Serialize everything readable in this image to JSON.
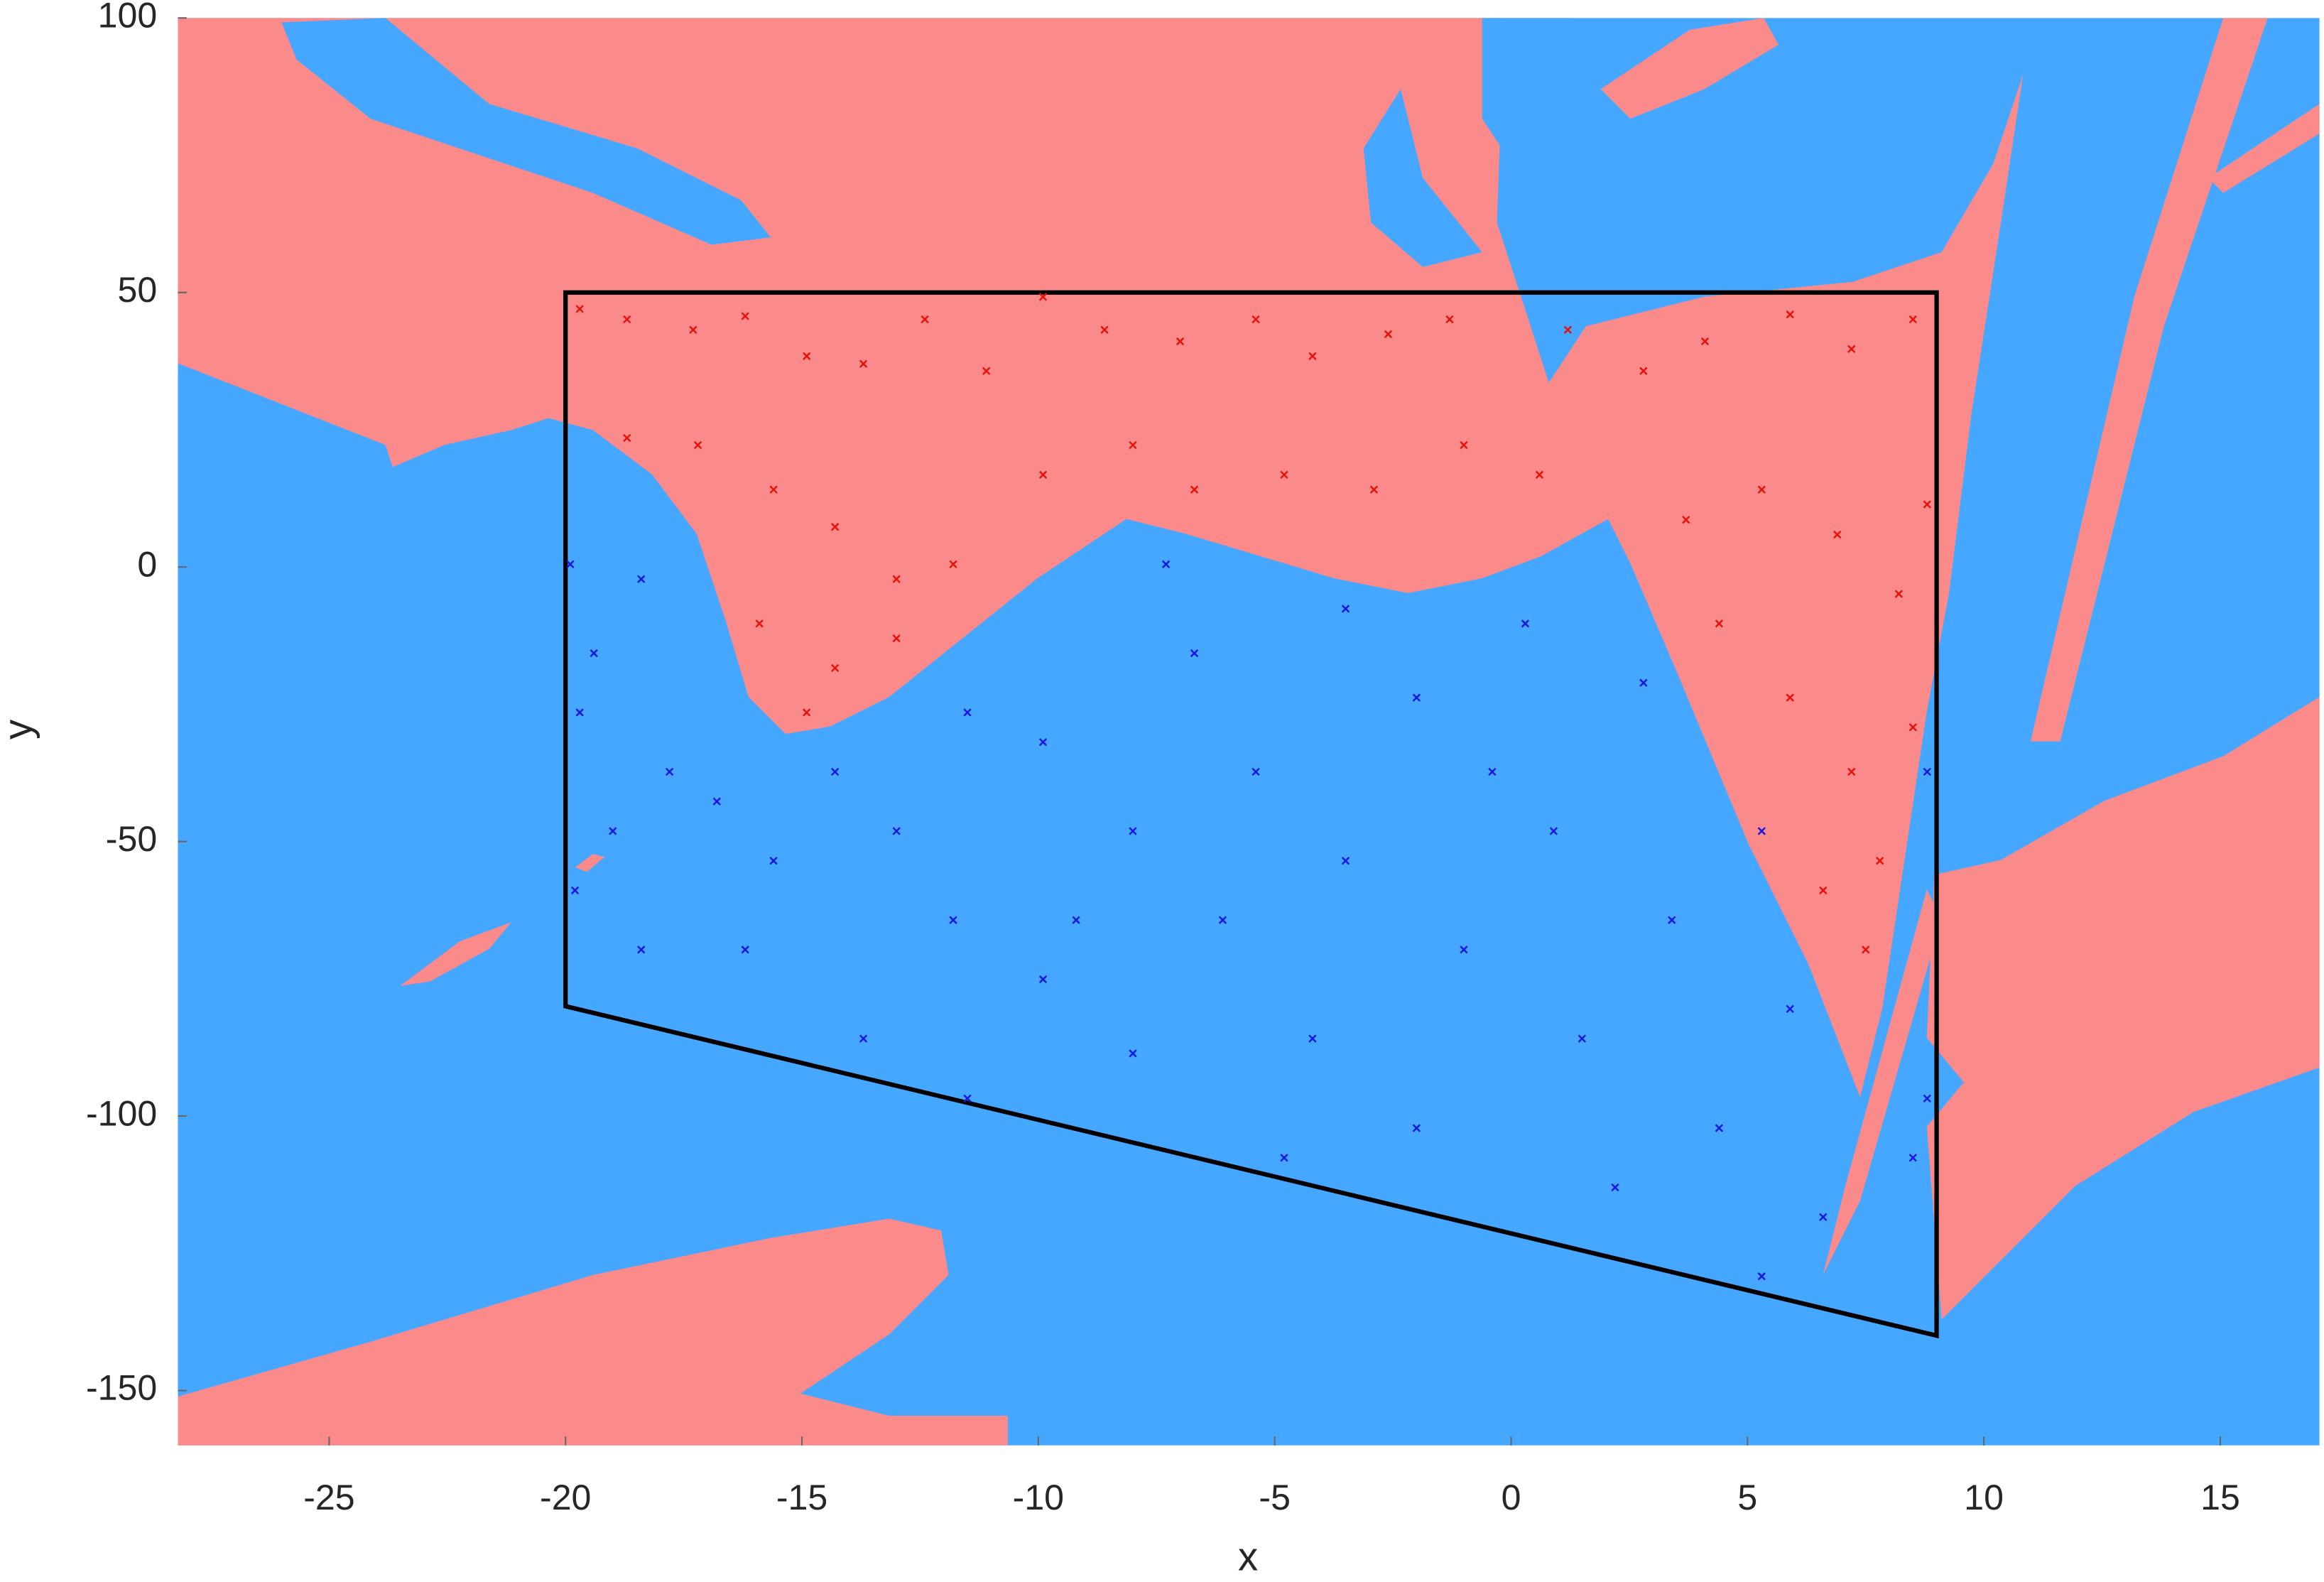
{
  "chart_data": {
    "type": "scatter",
    "x_label": "x",
    "y_label": "y",
    "xlim": [
      -28.2,
      17.1
    ],
    "ylim": [
      -160,
      100
    ],
    "xticks": [
      -25,
      -20,
      -15,
      -10,
      -5,
      0,
      5,
      10,
      15
    ],
    "yticks": [
      -150,
      -100,
      -50,
      0,
      50,
      100
    ],
    "region_colors": [
      "#fb8a8a",
      "#45a7ff"
    ],
    "boundary": {
      "color": "#000000",
      "x": [
        -20,
        9,
        9,
        -20
      ],
      "y": [
        50,
        50,
        -140,
        -80
      ]
    },
    "series": [
      {
        "color": "#e8120c",
        "x": [
          -19.7,
          -18.7,
          -17.3,
          -16.2,
          -14.9,
          -13.7,
          -12.4,
          -11.1,
          -9.9,
          -8.6,
          -7.0,
          -5.4,
          -4.2,
          -2.6,
          -1.3,
          1.2,
          2.8,
          4.1,
          5.9,
          7.2,
          8.5,
          -18.7,
          -17.2,
          -15.6,
          -14.3,
          -13.0,
          -11.8,
          -9.9,
          -8.0,
          -6.7,
          -4.8,
          -2.9,
          -1.0,
          0.6,
          3.7,
          5.3,
          6.9,
          8.2,
          8.8,
          -15.9,
          -14.3,
          -13.0,
          -14.9,
          4.4,
          5.9,
          7.2,
          7.8,
          6.6,
          7.5,
          8.5
        ],
        "y": [
          47,
          45.1,
          43.2,
          45.7,
          38.4,
          37.0,
          45.1,
          35.7,
          49.2,
          43.2,
          41.1,
          45.1,
          38.4,
          42.4,
          45.1,
          43.2,
          35.7,
          41.1,
          46.0,
          39.7,
          45.1,
          23.5,
          22.2,
          14.1,
          7.3,
          -2.2,
          0.5,
          16.8,
          22.2,
          14.1,
          16.8,
          14.1,
          22.2,
          16.8,
          8.6,
          14.1,
          5.9,
          -4.9,
          11.4,
          -10.3,
          -18.4,
          -13.0,
          -26.5,
          -10.3,
          -23.8,
          -37.3,
          -53.5,
          -58.9,
          -69.7,
          -29.2
        ]
      },
      {
        "color": "#1818e0",
        "x": [
          -19.9,
          -19.4,
          -18.4,
          -19.7,
          -17.8,
          -19.0,
          -19.8,
          -18.4,
          -16.8,
          -15.6,
          -14.3,
          -13.0,
          -11.5,
          -11.8,
          -9.9,
          -9.9,
          -8.0,
          -6.7,
          -5.4,
          -6.1,
          -4.2,
          -3.5,
          -2.0,
          -1.0,
          0.3,
          0.9,
          1.5,
          2.8,
          3.4,
          4.4,
          5.3,
          5.9,
          6.6,
          5.3,
          8.5,
          8.8,
          8.8,
          2.2,
          -2.0,
          -4.8,
          -8.0,
          -11.5,
          -13.7,
          -16.2,
          -7.3,
          -3.5,
          -9.2,
          -0.4
        ],
        "y": [
          0.5,
          -15.7,
          -2.2,
          -26.5,
          -37.3,
          -48.1,
          -58.9,
          -69.7,
          -42.7,
          -53.5,
          -37.3,
          -48.1,
          -26.5,
          -64.3,
          -31.9,
          -75.1,
          -48.1,
          -15.7,
          -37.3,
          -64.3,
          -85.9,
          -53.5,
          -23.8,
          -69.7,
          -10.3,
          -48.1,
          -85.9,
          -21.1,
          -64.3,
          -102.2,
          -48.1,
          -80.5,
          -118.4,
          -129.2,
          -107.6,
          -96.8,
          -37.3,
          -113.0,
          -102.2,
          -107.6,
          -88.6,
          -96.8,
          -85.9,
          -69.7,
          0.5,
          -7.6,
          -64.3,
          -37.3
        ]
      }
    ]
  }
}
